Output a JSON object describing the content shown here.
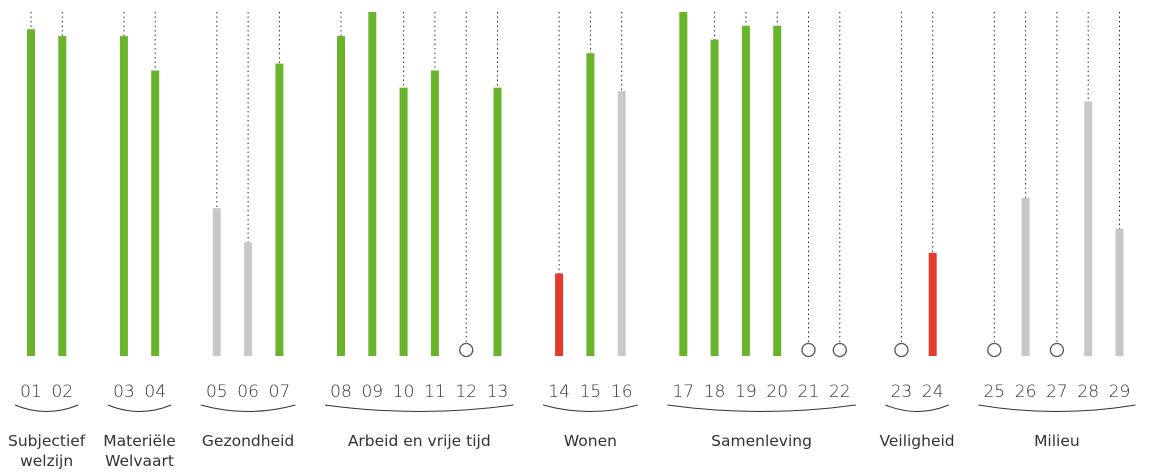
{
  "chart_data": {
    "type": "bar",
    "ylim": [
      0,
      100
    ],
    "groups": [
      {
        "label": "Subjectief welzijn",
        "categories": [
          "01",
          "02"
        ],
        "values": [
          95,
          93
        ],
        "colors": [
          "#6ab42d",
          "#6ab42d"
        ]
      },
      {
        "label": "Materiële Welvaart",
        "categories": [
          "03",
          "04"
        ],
        "values": [
          93,
          83
        ],
        "colors": [
          "#6ab42d",
          "#6ab42d"
        ]
      },
      {
        "label": "Gezondheid",
        "categories": [
          "05",
          "06",
          "07"
        ],
        "values": [
          43,
          33,
          85
        ],
        "colors": [
          "#c8c8c8",
          "#c8c8c8",
          "#6ab42d"
        ]
      },
      {
        "label": "Arbeid en vrije tijd",
        "categories": [
          "08",
          "09",
          "10",
          "11",
          "12",
          "13"
        ],
        "values": [
          93,
          100,
          78,
          83,
          null,
          78
        ],
        "colors": [
          "#6ab42d",
          "#6ab42d",
          "#6ab42d",
          "#6ab42d",
          null,
          "#6ab42d"
        ]
      },
      {
        "label": "Wonen",
        "categories": [
          "14",
          "15",
          "16"
        ],
        "values": [
          24,
          88,
          77
        ],
        "colors": [
          "#e53a2e",
          "#6ab42d",
          "#c8c8c8"
        ]
      },
      {
        "label": "Samenleving",
        "categories": [
          "17",
          "18",
          "19",
          "20",
          "21",
          "22"
        ],
        "values": [
          100,
          92,
          96,
          96,
          null,
          null
        ],
        "colors": [
          "#6ab42d",
          "#6ab42d",
          "#6ab42d",
          "#6ab42d",
          null,
          null
        ]
      },
      {
        "label": "Veiligheid",
        "categories": [
          "23",
          "24"
        ],
        "values": [
          null,
          30
        ],
        "colors": [
          null,
          "#e53a2e"
        ]
      },
      {
        "label": "Milieu",
        "categories": [
          "25",
          "26",
          "27",
          "28",
          "29"
        ],
        "values": [
          null,
          46,
          null,
          74,
          37
        ],
        "colors": [
          null,
          "#c8c8c8",
          null,
          "#c8c8c8",
          "#c8c8c8"
        ]
      }
    ]
  }
}
